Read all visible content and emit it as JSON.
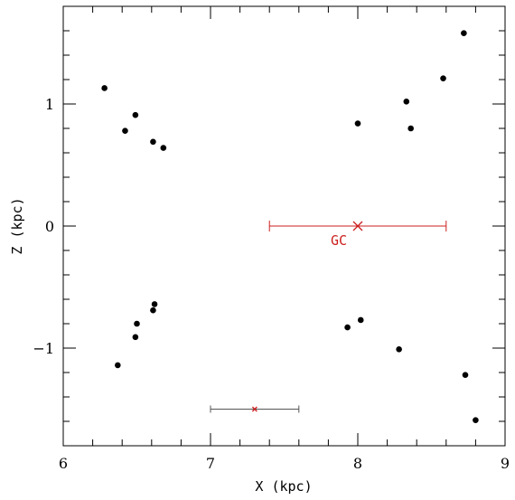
{
  "chart_data": {
    "type": "scatter",
    "xlabel": "X (kpc)",
    "ylabel": "Z (kpc)",
    "xlim": [
      6,
      9
    ],
    "ylim": [
      -1.8,
      1.8
    ],
    "x_ticks": [
      "6",
      "7",
      "8",
      "9"
    ],
    "y_ticks": [
      "−1",
      "0",
      "1"
    ],
    "points": [
      {
        "x": 6.28,
        "y": 1.13
      },
      {
        "x": 6.49,
        "y": 0.91
      },
      {
        "x": 6.42,
        "y": 0.78
      },
      {
        "x": 6.61,
        "y": 0.69
      },
      {
        "x": 6.68,
        "y": 0.64
      },
      {
        "x": 8.0,
        "y": 0.84
      },
      {
        "x": 8.33,
        "y": 1.02
      },
      {
        "x": 8.36,
        "y": 0.8
      },
      {
        "x": 8.58,
        "y": 1.21
      },
      {
        "x": 8.72,
        "y": 1.58
      },
      {
        "x": 6.62,
        "y": -0.64
      },
      {
        "x": 6.61,
        "y": -0.69
      },
      {
        "x": 6.5,
        "y": -0.8
      },
      {
        "x": 6.49,
        "y": -0.91
      },
      {
        "x": 6.37,
        "y": -1.14
      },
      {
        "x": 7.93,
        "y": -0.83
      },
      {
        "x": 8.02,
        "y": -0.77
      },
      {
        "x": 8.28,
        "y": -1.01
      },
      {
        "x": 8.73,
        "y": -1.22
      },
      {
        "x": 8.8,
        "y": -1.59
      }
    ],
    "markers": [
      {
        "label": "GC",
        "x": 8.0,
        "y": 0.0,
        "xerr": 0.6,
        "color": "#cc1f1f",
        "symbol": "cross-large"
      },
      {
        "label": "",
        "x": 7.3,
        "y": -1.5,
        "xerr": 0.3,
        "color": "#cc1f1f",
        "errcolor": "#555555",
        "symbol": "cross-small"
      }
    ],
    "point_color": "#000000",
    "grid": false,
    "legend": "none"
  }
}
